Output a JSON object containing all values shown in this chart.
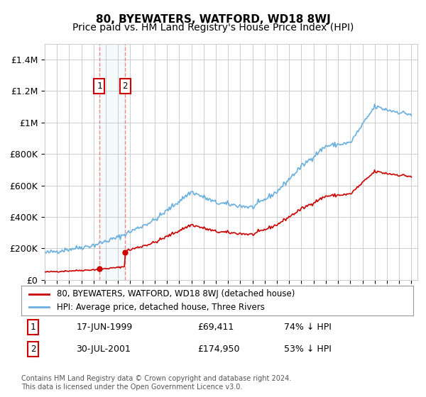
{
  "title": "80, BYEWATERS, WATFORD, WD18 8WJ",
  "subtitle": "Price paid vs. HM Land Registry's House Price Index (HPI)",
  "ylabel_ticks": [
    "£0",
    "£200K",
    "£400K",
    "£600K",
    "£800K",
    "£1M",
    "£1.2M",
    "£1.4M"
  ],
  "ytick_values": [
    0,
    200000,
    400000,
    600000,
    800000,
    1000000,
    1200000,
    1400000
  ],
  "ylim": [
    0,
    1500000
  ],
  "xlim_start": 1995.0,
  "xlim_end": 2025.5,
  "hpi_color": "#6ab0de",
  "price_color": "#cc0000",
  "sale1_date": 1999.46,
  "sale1_price": 69411,
  "sale2_date": 2001.58,
  "sale2_price": 174950,
  "legend_label1": "80, BYEWATERS, WATFORD, WD18 8WJ (detached house)",
  "legend_label2": "HPI: Average price, detached house, Three Rivers",
  "annotation1_label": "1",
  "annotation2_label": "2",
  "table_row1": [
    "1",
    "17-JUN-1999",
    "£69,411",
    "74% ↓ HPI"
  ],
  "table_row2": [
    "2",
    "30-JUL-2001",
    "£174,950",
    "53% ↓ HPI"
  ],
  "footer": "Contains HM Land Registry data © Crown copyright and database right 2024.\nThis data is licensed under the Open Government Licence v3.0.",
  "bg_color": "#ffffff",
  "grid_color": "#cccccc",
  "title_fontsize": 11,
  "subtitle_fontsize": 10
}
